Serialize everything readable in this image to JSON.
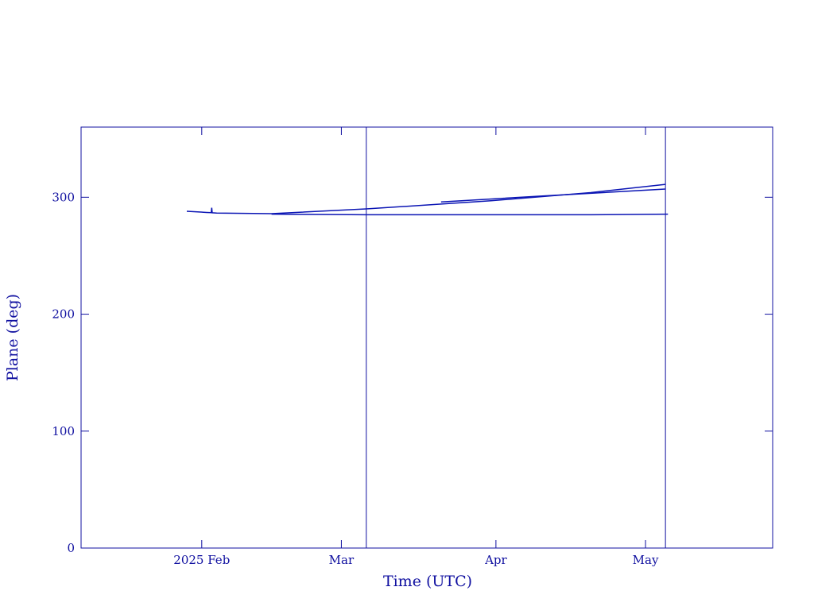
{
  "chart_data": {
    "type": "line",
    "xlabel": "Time (UTC)",
    "ylabel": "Plane (deg)",
    "xlim": [
      7.8,
      146.5
    ],
    "ylim": [
      0,
      360
    ],
    "xticks": [
      {
        "value": 32,
        "label": "2025 Feb"
      },
      {
        "value": 60,
        "label": "Mar"
      },
      {
        "value": 91,
        "label": "Apr"
      },
      {
        "value": 121,
        "label": "May"
      }
    ],
    "yticks": [
      0,
      100,
      200,
      300
    ],
    "vlines": [
      65,
      125
    ],
    "axis_color": "#1010a0",
    "series": [
      {
        "color": "#0a14b4",
        "x": [
          29,
          33,
          33.9,
          34,
          34.1,
          35,
          46,
          65,
          90,
          110,
          125
        ],
        "values": [
          288,
          287,
          286.8,
          291,
          286.7,
          286.5,
          286,
          290,
          297,
          304,
          311
        ]
      },
      {
        "color": "#0a14b4",
        "x": [
          80,
          100,
          125
        ],
        "values": [
          296,
          301,
          307
        ]
      },
      {
        "color": "#0a14b4",
        "x": [
          46,
          65,
          90,
          110,
          125.5
        ],
        "values": [
          285.5,
          285,
          285,
          285,
          285.5
        ]
      }
    ]
  }
}
